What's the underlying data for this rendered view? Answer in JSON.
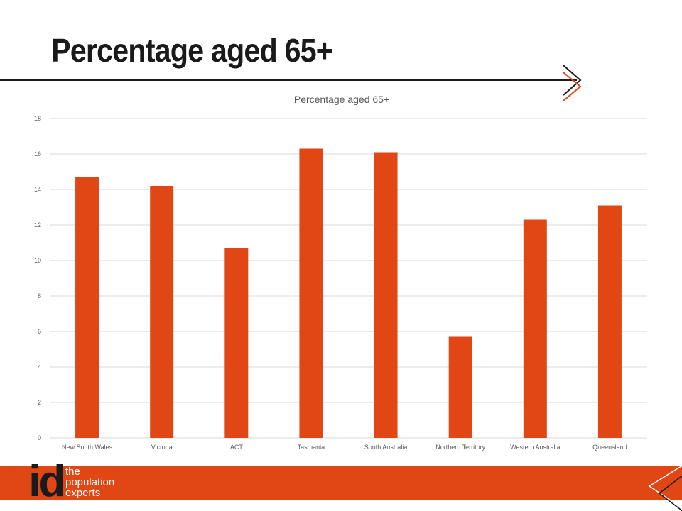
{
  "slide": {
    "title": "Percentage aged 65+"
  },
  "brand": {
    "logo_dot": ".",
    "logo_text": "id",
    "tagline": [
      "the",
      "population",
      "experts"
    ],
    "accent": "#e04714",
    "dark": "#1a1a1a"
  },
  "chart_data": {
    "type": "bar",
    "title": "Percentage aged 65+",
    "categories": [
      "New South Wales",
      "Victoria",
      "ACT",
      "Tasmania",
      "South Australia",
      "Northern Territory",
      "Western Australia",
      "Queensland"
    ],
    "values": [
      14.7,
      14.2,
      10.7,
      16.3,
      16.1,
      5.7,
      12.3,
      13.1
    ],
    "ylim": [
      0,
      18
    ],
    "yticks": [
      "0",
      "2",
      "4",
      "6",
      "8",
      "10",
      "12",
      "14",
      "16",
      "18"
    ],
    "grid": true,
    "legend": "none",
    "bar_color": "#e04714",
    "xlabel": "",
    "ylabel": ""
  }
}
